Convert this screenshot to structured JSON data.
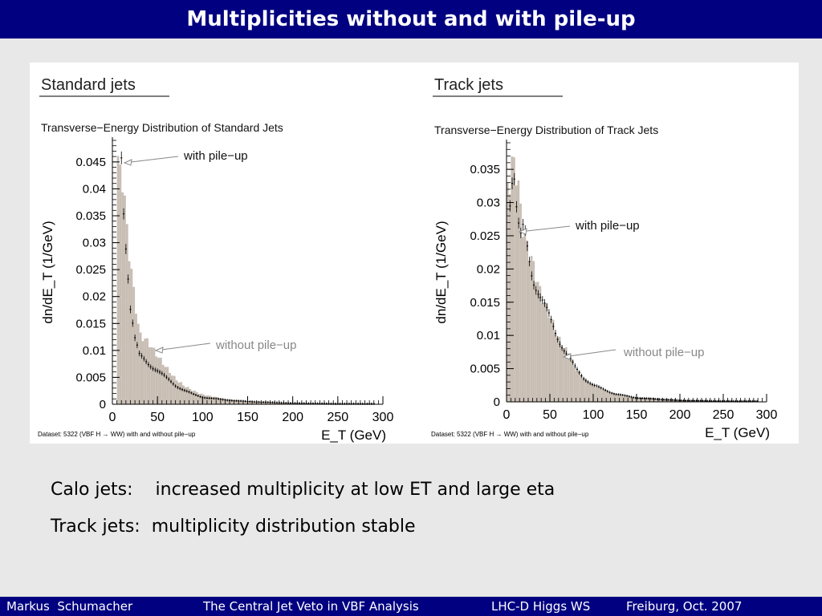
{
  "slide": {
    "title": "Multiplicities without and with pile-up",
    "bullets": [
      {
        "label": "Calo jets:",
        "text": "increased multiplicity at low ET and large eta"
      },
      {
        "label": "Track jets:",
        "text": "multiplicity distribution stable"
      }
    ],
    "footer": {
      "author": "Markus  Schumacher",
      "talk": "The Central Jet Veto in VBF Analysis",
      "workshop": "LHC-D Higgs WS",
      "place": "Freiburg, Oct. 2007"
    }
  },
  "colors": {
    "title_bar": "#000080",
    "histogram_fill": "#c8beb4",
    "background": "#e8e8e8"
  },
  "chart_data": [
    {
      "type": "bar",
      "heading": "Standard jets",
      "title": "Transverse−Energy Distribution of Standard Jets",
      "xlabel": "E_T (GeV)",
      "ylabel": "dn/dE_T (1/GeV)",
      "xlim": [
        0,
        300
      ],
      "ylim": [
        0,
        0.049
      ],
      "xticks": [
        0,
        50,
        100,
        150,
        200,
        250,
        300
      ],
      "yticks": [
        0,
        0.005,
        0.01,
        0.015,
        0.02,
        0.025,
        0.03,
        0.035,
        0.04,
        0.045
      ],
      "ytick_labels": [
        "0",
        "0.005",
        "0.01",
        "0.015",
        "0.02",
        "0.025",
        "0.03",
        "0.035",
        "0.04",
        "0.045"
      ],
      "annotations": [
        "with pile−up",
        "without pile−up"
      ],
      "dataset_note": "Dataset:  5322 (VBF H → WW) with and without pile−up",
      "series": [
        {
          "name": "without pile−up",
          "style": "histogram",
          "x": [
            10,
            20,
            30,
            40,
            50,
            60,
            70,
            80,
            90,
            100,
            125,
            150,
            200,
            250,
            300
          ],
          "values": [
            0.044,
            0.026,
            0.013,
            0.0115,
            0.009,
            0.0068,
            0.0047,
            0.0034,
            0.0025,
            0.0018,
            0.001,
            0.0006,
            0.0002,
            0.0001,
            0.0
          ]
        },
        {
          "name": "with pile−up",
          "style": "points",
          "x": [
            10,
            13,
            16,
            20,
            25,
            30,
            40,
            50,
            60,
            70,
            80,
            90,
            100,
            125,
            150,
            200,
            250
          ],
          "values": [
            0.047,
            0.035,
            0.028,
            0.018,
            0.012,
            0.009,
            0.0076,
            0.0063,
            0.0048,
            0.0035,
            0.0026,
            0.0018,
            0.0013,
            0.0008,
            0.0005,
            0.0002,
            0.0001
          ]
        }
      ]
    },
    {
      "type": "bar",
      "heading": "Track jets",
      "title": "Transverse−Energy Distribution of Track Jets",
      "xlabel": "E_T (GeV)",
      "ylabel": "dn/dE_T (1/GeV)",
      "xlim": [
        0,
        300
      ],
      "ylim": [
        0,
        0.039
      ],
      "xticks": [
        0,
        50,
        100,
        150,
        200,
        250,
        300
      ],
      "yticks": [
        0,
        0.005,
        0.01,
        0.015,
        0.02,
        0.025,
        0.03,
        0.035
      ],
      "ytick_labels": [
        "0",
        "0.005",
        "0.01",
        "0.015",
        "0.02",
        "0.025",
        "0.03",
        "0.035"
      ],
      "annotations": [
        "with pile−up",
        "without pile−up"
      ],
      "dataset_note": "Dataset:  5322 (VBF H → WW) with and without pile−up",
      "series": [
        {
          "name": "without pile−up",
          "style": "histogram",
          "x": [
            4,
            8,
            12,
            20,
            30,
            40,
            50,
            60,
            70,
            80,
            90,
            100,
            125,
            150,
            200,
            250,
            300
          ],
          "values": [
            0.033,
            0.037,
            0.034,
            0.025,
            0.021,
            0.016,
            0.013,
            0.0095,
            0.0075,
            0.005,
            0.0035,
            0.0025,
            0.0012,
            0.0006,
            0.0002,
            0.0001,
            0.0
          ]
        },
        {
          "name": "with pile−up",
          "style": "points",
          "x": [
            4,
            8,
            12,
            16,
            20,
            30,
            40,
            50,
            60,
            70,
            80,
            90,
            100,
            125,
            150,
            200,
            250
          ],
          "values": [
            0.031,
            0.036,
            0.028,
            0.024,
            0.026,
            0.019,
            0.0155,
            0.0125,
            0.0095,
            0.007,
            0.005,
            0.0035,
            0.0025,
            0.0012,
            0.0006,
            0.0002,
            0.0001
          ]
        }
      ]
    }
  ]
}
